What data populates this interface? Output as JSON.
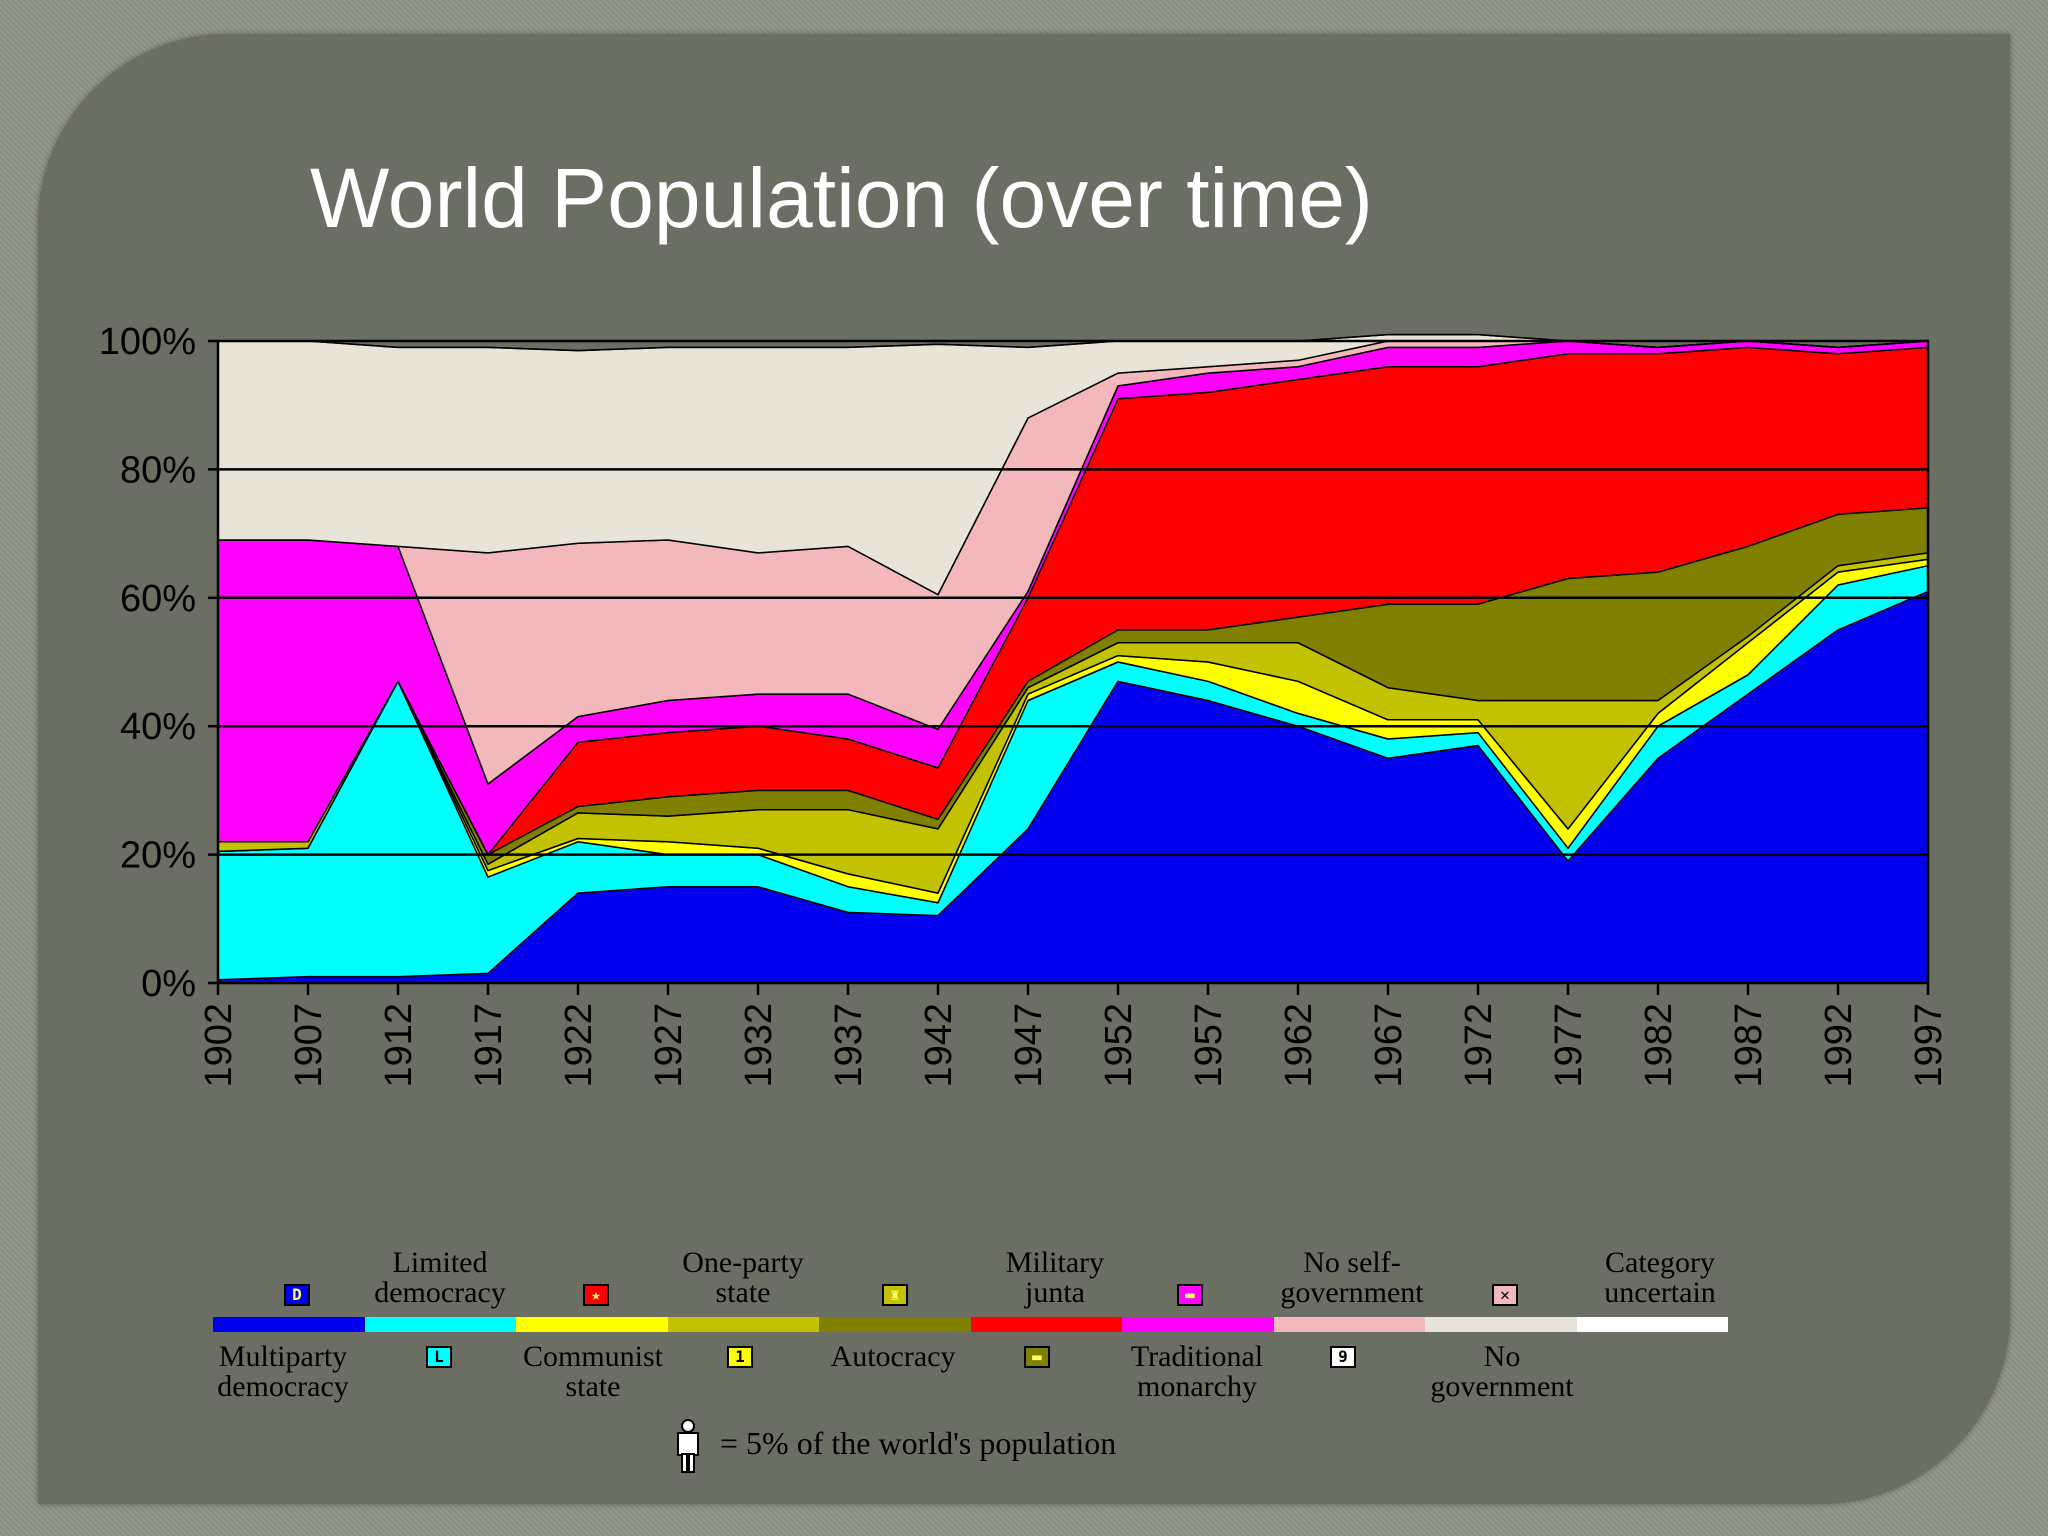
{
  "page": {
    "title": "World Population (over time)"
  },
  "chart_data": {
    "type": "area",
    "stacked": true,
    "title": "World Population (over time)",
    "xlabel": "",
    "ylabel": "",
    "ylim": [
      0,
      100
    ],
    "y_ticks": [
      "0%",
      "20%",
      "40%",
      "60%",
      "80%",
      "100%"
    ],
    "x_ticks": [
      "1902",
      "1907",
      "1912",
      "1917",
      "1922",
      "1927",
      "1932",
      "1937",
      "1942",
      "1947",
      "1952",
      "1957",
      "1962",
      "1967",
      "1972",
      "1977",
      "1982",
      "1987",
      "1992",
      "1997"
    ],
    "grid": true,
    "x": [
      1902,
      1907,
      1912,
      1917,
      1922,
      1927,
      1932,
      1937,
      1942,
      1947,
      1952,
      1957,
      1962,
      1967,
      1972,
      1977,
      1982,
      1987,
      1992,
      1997
    ],
    "series": [
      {
        "name": "Multiparty democracy",
        "color": "#0000ee",
        "values": [
          0.5,
          1,
          1,
          1.5,
          14,
          15,
          15,
          11,
          10.5,
          24,
          47,
          44,
          40,
          35,
          37,
          19,
          35,
          45,
          55,
          61
        ]
      },
      {
        "name": "Limited democracy",
        "color": "#00ffff",
        "values": [
          20,
          20,
          46,
          15,
          8,
          5,
          5,
          4,
          2,
          20,
          3,
          3,
          2,
          3,
          2,
          2,
          5,
          3,
          7,
          4
        ]
      },
      {
        "name": "Communist state",
        "color": "#ffff00",
        "values": [
          0,
          0,
          0,
          1,
          0.5,
          2,
          1,
          2,
          1.5,
          1,
          1,
          3,
          5,
          3,
          2,
          3,
          2,
          5,
          2,
          1
        ]
      },
      {
        "name": "One-party state",
        "color": "#c2c200",
        "values": [
          1.5,
          1,
          0,
          1,
          4,
          4,
          6,
          10,
          10,
          1,
          2,
          3,
          6,
          5,
          3,
          20,
          2,
          1,
          1,
          1
        ]
      },
      {
        "name": "Autocracy",
        "color": "#808000",
        "values": [
          0,
          0,
          0,
          1.5,
          1,
          3,
          3,
          3,
          1.5,
          1,
          2,
          2,
          4,
          13,
          15,
          19,
          20,
          14,
          8,
          7
        ]
      },
      {
        "name": "Military junta",
        "color": "#ff0000",
        "values": [
          0,
          0,
          0,
          0,
          10,
          10,
          10,
          8,
          8,
          13,
          36,
          37,
          37,
          37,
          37,
          35,
          34,
          31,
          25,
          25
        ]
      },
      {
        "name": "Traditional monarchy",
        "color": "#ff00ff",
        "values": [
          47,
          47,
          21,
          11,
          4,
          5,
          5,
          7,
          6,
          1,
          2,
          3,
          2,
          3,
          3,
          2,
          1,
          1,
          1,
          1
        ]
      },
      {
        "name": "No self-government",
        "color": "#f2b8bc",
        "values": [
          0,
          0,
          0,
          36,
          27,
          25,
          22,
          23,
          21,
          27,
          2,
          1,
          1,
          1,
          1,
          0,
          0,
          0,
          0,
          0
        ]
      },
      {
        "name": "No government",
        "color": "#e8e4d8",
        "values": [
          31,
          31,
          31,
          32,
          30,
          30,
          32,
          31,
          39,
          11,
          5,
          4,
          3,
          1,
          1,
          0,
          0,
          0,
          0,
          0
        ]
      },
      {
        "name": "Category uncertain",
        "color": "#ffffff",
        "values": [
          0,
          0,
          0,
          0,
          0,
          0,
          0,
          0,
          0,
          0,
          0,
          0,
          0,
          0,
          0,
          0,
          0,
          0,
          0,
          0
        ]
      }
    ],
    "legend_top": [
      {
        "label": "Limited\ndemocracy",
        "icon": "D",
        "icon_color": "#0000ee"
      },
      {
        "label": "One-party\nstate",
        "icon": "★",
        "icon_color": "#ff0000"
      },
      {
        "label": "Military\njunta",
        "icon": "♜",
        "icon_color": "#c2c200"
      },
      {
        "label": "No self-\ngovernment",
        "icon": "▬",
        "icon_color": "#ff00ff"
      },
      {
        "label": "Category\nuncertain",
        "icon": "✕",
        "icon_color": "#f2b8bc"
      }
    ],
    "legend_bottom": [
      {
        "label": "Multiparty\ndemocracy"
      },
      {
        "label": "Communist\nstate",
        "icon": "L",
        "icon_color": "#00ffff"
      },
      {
        "label": "Autocracy",
        "icon": "1",
        "icon_color": "#ffff00"
      },
      {
        "label": "Traditional\nmonarchy",
        "icon": "▬",
        "icon_color": "#808000"
      },
      {
        "label": "No\ngovernment",
        "icon": "9",
        "icon_color": "#ffffff"
      }
    ],
    "footnote": "= 5% of the world's population"
  }
}
